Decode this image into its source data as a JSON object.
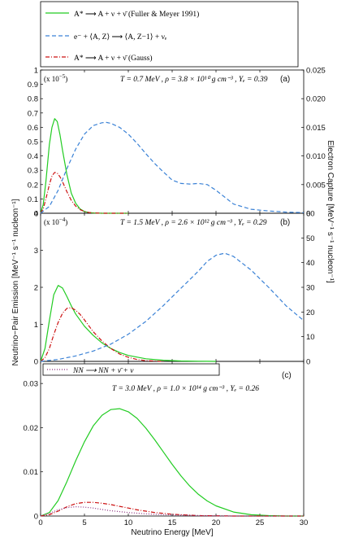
{
  "chart_data": [
    {
      "type": "line",
      "panel": "(a)",
      "exponent": "(x 10",
      "exponent_power": "−5",
      "exponent_close": ")",
      "conditions": "T = 0.7 MeV ,  ρ = 3.8 × 10¹⁰ g cm⁻³ ,  Yₑ = 0.39",
      "xlim": [
        0,
        30
      ],
      "ylim_left": [
        0,
        1
      ],
      "yticks_left": [
        "0",
        "0.1",
        "0.2",
        "0.3",
        "0.4",
        "0.5",
        "0.6",
        "0.7",
        "0.8",
        "0.9",
        "1"
      ],
      "ylim_right": [
        0,
        0.025
      ],
      "yticks_right": [
        "0",
        "0.005",
        "0.010",
        "0.015",
        "0.020",
        "0.025"
      ],
      "series": [
        {
          "name": "A* ⟶ A + ν + ν̄ (Fuller & Meyer 1991)",
          "axis": "left",
          "color": "#22cc22",
          "style": "solid",
          "x": [
            0,
            0.3,
            0.6,
            1,
            1.3,
            1.6,
            1.9,
            2.2,
            2.5,
            3,
            3.5,
            4,
            4.5,
            5,
            5.5,
            6,
            7,
            8,
            9,
            10
          ],
          "y": [
            0,
            0.06,
            0.22,
            0.48,
            0.6,
            0.66,
            0.64,
            0.55,
            0.44,
            0.27,
            0.14,
            0.07,
            0.03,
            0.012,
            0.005,
            0.002,
            0,
            0,
            0,
            0
          ]
        },
        {
          "name": "A* ⟶ A + ν + ν̄ (Gauss)",
          "axis": "left",
          "color": "#cc1111",
          "style": "dashdot",
          "x": [
            0,
            0.3,
            0.6,
            1,
            1.3,
            1.6,
            1.9,
            2.2,
            2.5,
            3,
            3.5,
            4,
            4.5,
            5,
            5.5,
            6,
            7,
            8,
            9,
            10
          ],
          "y": [
            0,
            0.03,
            0.1,
            0.2,
            0.26,
            0.285,
            0.28,
            0.255,
            0.22,
            0.15,
            0.09,
            0.05,
            0.025,
            0.012,
            0.005,
            0.002,
            0,
            0,
            0,
            0
          ]
        },
        {
          "name": "e⁻ + ⟨A, Z⟩ ⟶ ⟨A, Z−1⟩ + νₑ",
          "axis": "right",
          "color": "#3b82d6",
          "style": "dashed",
          "x": [
            0,
            1,
            2,
            3,
            4,
            5,
            6,
            7,
            7.5,
            8,
            9,
            10,
            11,
            12,
            13,
            14,
            15,
            16,
            17,
            18,
            19,
            20,
            22,
            24,
            26,
            28,
            30
          ],
          "y": [
            0,
            0.0012,
            0.004,
            0.0078,
            0.0112,
            0.0138,
            0.0153,
            0.0158,
            0.01585,
            0.0157,
            0.015,
            0.0138,
            0.0122,
            0.0104,
            0.0087,
            0.0072,
            0.0058,
            0.0052,
            0.0051,
            0.0052,
            0.005,
            0.004,
            0.0016,
            0.0007,
            0.0004,
            0.0002,
            0.0001
          ]
        }
      ]
    },
    {
      "type": "line",
      "panel": "(b)",
      "exponent": "(x 10",
      "exponent_power": "−4",
      "exponent_close": ")",
      "conditions": "T = 1.5 MeV ,  ρ = 2.6 × 10¹² g cm⁻³ ,  Yₑ = 0.29",
      "xlim": [
        0,
        30
      ],
      "ylim_left": [
        0,
        4
      ],
      "yticks_left": [
        "0",
        "1",
        "2",
        "3",
        "4"
      ],
      "ylim_right": [
        0,
        60
      ],
      "yticks_right": [
        "0",
        "10",
        "20",
        "30",
        "40",
        "50",
        "60"
      ],
      "series": [
        {
          "name": "A* ⟶ A + ν + ν̄ (Fuller & Meyer 1991)",
          "axis": "left",
          "color": "#22cc22",
          "style": "solid",
          "x": [
            0,
            0.5,
            1,
            1.5,
            2,
            2.5,
            3,
            3.5,
            4,
            5,
            6,
            7,
            8,
            9,
            10,
            12,
            14,
            16,
            18,
            20
          ],
          "y": [
            0,
            0.35,
            1.1,
            1.8,
            2.05,
            1.98,
            1.75,
            1.5,
            1.28,
            0.95,
            0.7,
            0.5,
            0.35,
            0.24,
            0.16,
            0.07,
            0.03,
            0.01,
            0.004,
            0.001
          ]
        },
        {
          "name": "A* ⟶ A + ν + ν̄ (Gauss)",
          "axis": "left",
          "color": "#cc1111",
          "style": "dashdot",
          "x": [
            0,
            0.5,
            1,
            1.5,
            2,
            2.5,
            3,
            3.5,
            4,
            4.5,
            5,
            6,
            7,
            8,
            9,
            10,
            11,
            12,
            14
          ],
          "y": [
            0,
            0.1,
            0.35,
            0.72,
            1.05,
            1.3,
            1.43,
            1.45,
            1.38,
            1.27,
            1.12,
            0.8,
            0.55,
            0.35,
            0.2,
            0.11,
            0.05,
            0.02,
            0
          ]
        },
        {
          "name": "e⁻ + ⟨A, Z⟩ ⟶ ⟨A, Z−1⟩ + νₑ",
          "axis": "right",
          "color": "#3b82d6",
          "style": "dashed",
          "x": [
            0,
            2,
            4,
            6,
            8,
            10,
            12,
            14,
            16,
            18,
            19,
            20,
            21,
            22,
            24,
            26,
            28,
            30
          ],
          "y": [
            0,
            0.8,
            2.2,
            4.2,
            7,
            11,
            16.2,
            22.6,
            29.6,
            36.6,
            40.5,
            43,
            43.8,
            42.5,
            37,
            30,
            22.5,
            16.5
          ]
        }
      ]
    },
    {
      "type": "line",
      "panel": "(c)",
      "conditions": "T = 3.0 MeV ,  ρ = 1.0 × 10¹⁴ g cm⁻³ ,  Yₑ = 0.26",
      "xlim": [
        0,
        30
      ],
      "ylim_left": [
        0,
        0.035
      ],
      "yticks_left": [
        "0",
        "0.01",
        "0.02",
        "0.03"
      ],
      "xticks": [
        "0",
        "5",
        "10",
        "15",
        "20",
        "25",
        "30"
      ],
      "xlabel": "Neutrino Energy [MeV]",
      "series": [
        {
          "name": "A* ⟶ A + ν + ν̄ (Fuller & Meyer 1991)",
          "axis": "left",
          "color": "#22cc22",
          "style": "solid",
          "x": [
            0,
            1,
            2,
            3,
            4,
            5,
            6,
            7,
            8,
            9,
            10,
            11,
            12,
            13,
            14,
            15,
            16,
            17,
            18,
            19,
            20,
            22,
            24,
            26,
            28,
            30
          ],
          "y": [
            0,
            0.0008,
            0.0035,
            0.0078,
            0.0125,
            0.0168,
            0.0204,
            0.0228,
            0.0241,
            0.0243,
            0.0236,
            0.0221,
            0.0199,
            0.0173,
            0.0145,
            0.0117,
            0.0091,
            0.0068,
            0.0049,
            0.0034,
            0.0023,
            0.0009,
            0.0003,
            0.0001,
            0,
            0
          ]
        },
        {
          "name": "A* ⟶ A + ν + ν̄ (Gauss)",
          "axis": "left",
          "color": "#cc1111",
          "style": "dashdot",
          "x": [
            0,
            1,
            2,
            3,
            4,
            5,
            6,
            7,
            8,
            9,
            10,
            11,
            12,
            13,
            14,
            15,
            16,
            17,
            18,
            20,
            22,
            25,
            30
          ],
          "y": [
            0,
            0.0003,
            0.0011,
            0.0021,
            0.0028,
            0.0031,
            0.0031,
            0.0029,
            0.0026,
            0.0022,
            0.0018,
            0.0014,
            0.0011,
            0.0008,
            0.0006,
            0.0004,
            0.0003,
            0.0002,
            0.0001,
            5e-05,
            0,
            0,
            0
          ]
        },
        {
          "name": "NN ⟶ NN + ν̄ + ν",
          "axis": "left",
          "color": "#8b2f7e",
          "style": "dotted",
          "x": [
            0,
            1,
            2,
            3,
            4,
            5,
            6,
            7,
            8,
            9,
            10,
            12,
            14,
            16,
            18,
            20,
            22,
            25,
            30
          ],
          "y": [
            0,
            0.0006,
            0.0014,
            0.0019,
            0.0021,
            0.002,
            0.0018,
            0.0015,
            0.0012,
            0.001,
            0.0008,
            0.0005,
            0.0003,
            0.0002,
            0.0001,
            5e-05,
            0,
            0,
            0
          ]
        }
      ]
    }
  ],
  "legend": {
    "top": [
      {
        "text": "A* ⟶ A + ν + ν̄  (Fuller & Meyer 1991)",
        "color": "#22cc22",
        "style": "solid"
      },
      {
        "text": "e⁻ + ⟨A, Z⟩ ⟶ ⟨A, Z−1⟩ + νₑ",
        "color": "#3b82d6",
        "style": "dashed"
      },
      {
        "text": "A* ⟶ A + ν + ν̄  (Gauss)",
        "color": "#cc1111",
        "style": "dashdot"
      }
    ],
    "panel_c": {
      "text": "NN ⟶ NN + ν̄ + ν",
      "color": "#8b2f7e",
      "style": "dotted"
    }
  },
  "axes": {
    "left_label": "Neutrino−Pair Emission [MeV⁻¹ s⁻¹ nucleon⁻¹]",
    "right_label": "Electron Capture [MeV⁻¹ s⁻¹ nucleon⁻¹]"
  }
}
